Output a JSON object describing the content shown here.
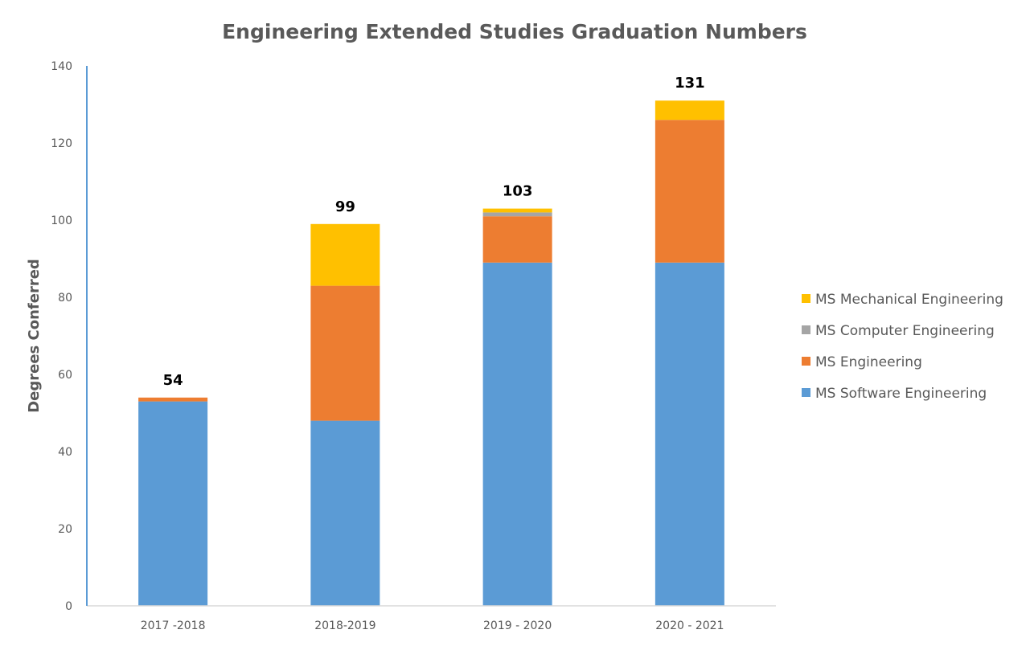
{
  "chart_data": {
    "type": "bar",
    "stacked": true,
    "title": "Engineering Extended Studies Graduation Numbers",
    "xlabel": "",
    "ylabel": "Degrees Conferred",
    "ylim": [
      0,
      140
    ],
    "yticks": [
      0,
      20,
      40,
      60,
      80,
      100,
      120,
      140
    ],
    "grid": false,
    "legend_position": "right",
    "categories": [
      "2017 -2018",
      "2018-2019",
      "2019 - 2020",
      "2020 - 2021"
    ],
    "series": [
      {
        "name": "MS Software Engineering",
        "color": "#5B9BD5",
        "values": [
          53,
          48,
          89,
          89
        ]
      },
      {
        "name": "MS Engineering",
        "color": "#ED7D31",
        "values": [
          1,
          35,
          12,
          37
        ]
      },
      {
        "name": "MS Computer Engineering",
        "color": "#A5A5A5",
        "values": [
          0,
          0,
          1,
          0
        ]
      },
      {
        "name": "MS Mechanical Engineering",
        "color": "#FFC000",
        "values": [
          0,
          16,
          1,
          5
        ]
      }
    ],
    "totals": [
      54,
      99,
      103,
      131
    ],
    "legend_order": [
      "MS Mechanical Engineering",
      "MS Computer Engineering",
      "MS Engineering",
      "MS Software Engineering"
    ]
  },
  "colors": {
    "axis_y": "#5B9BD5",
    "axis_x": "#D9D9D9",
    "text": "#595959"
  }
}
